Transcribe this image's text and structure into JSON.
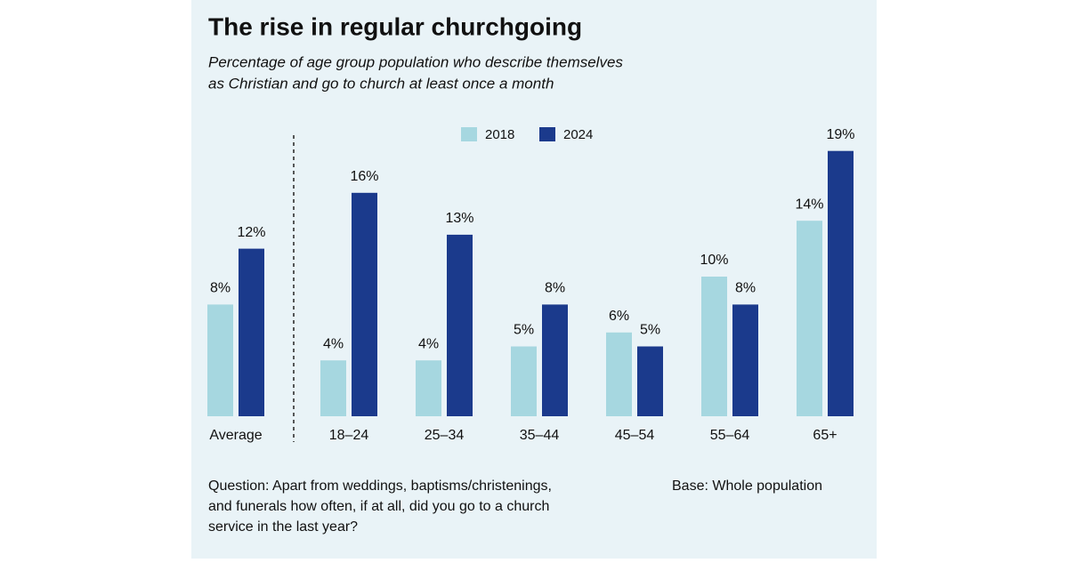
{
  "chart_data": {
    "type": "bar",
    "title": "The rise in regular churchgoing",
    "subtitle": [
      "Percentage of age group population who describe themselves",
      "as Christian and go to church at least once a month"
    ],
    "categories": [
      "Average",
      "18–24",
      "25–34",
      "35–44",
      "45–54",
      "55–64",
      "65+"
    ],
    "series": [
      {
        "name": "2018",
        "color": "#a6d7e0",
        "values": [
          8,
          4,
          4,
          5,
          6,
          10,
          14
        ],
        "value_labels": [
          "8%",
          "4%",
          "4%",
          "5%",
          "6%",
          "10%",
          "14%"
        ]
      },
      {
        "name": "2024",
        "color": "#1b3a8c",
        "values": [
          12,
          16,
          13,
          8,
          5,
          8,
          19
        ],
        "value_labels": [
          "12%",
          "16%",
          "13%",
          "8%",
          "5%",
          "8%",
          "19%"
        ]
      }
    ],
    "note": [
      "Question: Apart from weddings, baptisms/christenings,",
      "and funerals how often, if at all, did you go to a church",
      "service in the last year?"
    ],
    "base": "Base: Whole population"
  }
}
